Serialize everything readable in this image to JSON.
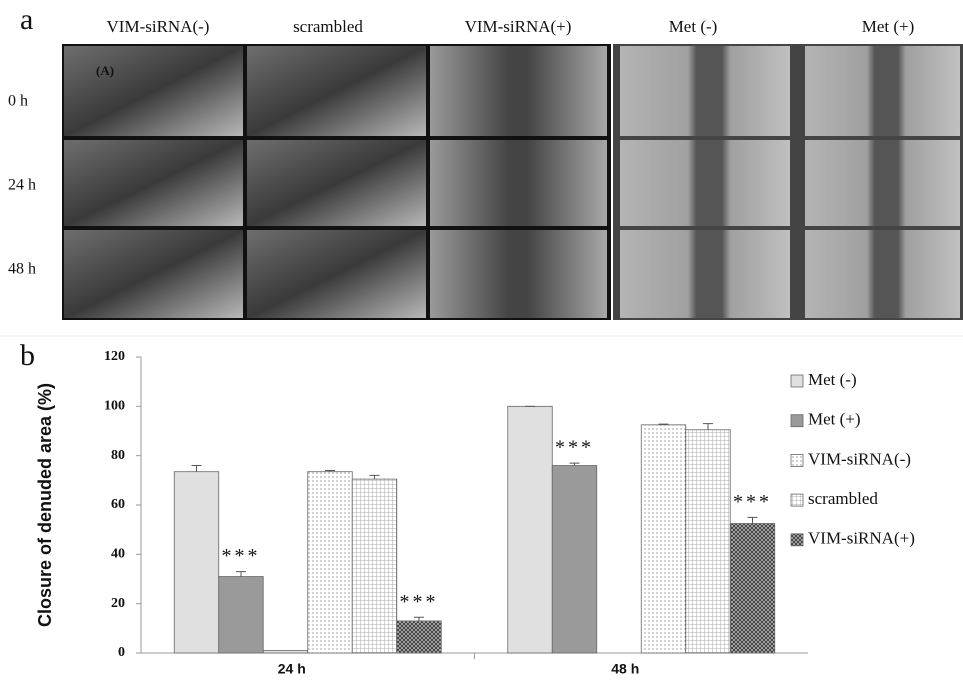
{
  "panel_a": {
    "label": "a",
    "columns": [
      "VIM-siRNA(-)",
      "scrambled",
      "VIM-siRNA(+)",
      "Met (-)",
      "Met (+)"
    ],
    "rows": [
      "0 h",
      "24 h",
      "48 h"
    ],
    "inset_label": "(A)"
  },
  "panel_b": {
    "label": "b"
  },
  "chart_data": {
    "type": "bar",
    "ylabel": "Closure of denuded area (%)",
    "categories": [
      "24 h",
      "48 h"
    ],
    "series": [
      {
        "name": "Met (-)",
        "color": "#e0e0e0",
        "pattern": "solid",
        "values": [
          73.5,
          100
        ],
        "errors": [
          2.5,
          0
        ]
      },
      {
        "name": "Met (+)",
        "color": "#9a9a9a",
        "pattern": "solid",
        "values": [
          31,
          76
        ],
        "errors": [
          2,
          1
        ],
        "markers": [
          "***",
          "***"
        ]
      },
      {
        "color": "#e0e0e0",
        "pattern": "solid",
        "values": [
          1,
          null
        ]
      },
      {
        "name": "VIM-siRNA(-)",
        "color": "#ffffff",
        "pattern": "dots",
        "values": [
          73.5,
          92.5
        ],
        "errors": [
          0.5,
          0.3
        ]
      },
      {
        "name": "scrambled",
        "color": "#ffffff",
        "pattern": "grid",
        "values": [
          70.5,
          90.5
        ],
        "errors": [
          1.5,
          2.5
        ]
      },
      {
        "name": "VIM-siRNA(+)",
        "color": "#777777",
        "pattern": "crosshatch",
        "values": [
          13,
          52.5
        ],
        "errors": [
          1.5,
          2.5
        ],
        "markers": [
          "***",
          "***"
        ]
      }
    ],
    "ylim": [
      0,
      120
    ],
    "yticks": [
      0,
      20,
      40,
      60,
      80,
      100,
      120
    ],
    "grid": false,
    "legend": "right"
  }
}
